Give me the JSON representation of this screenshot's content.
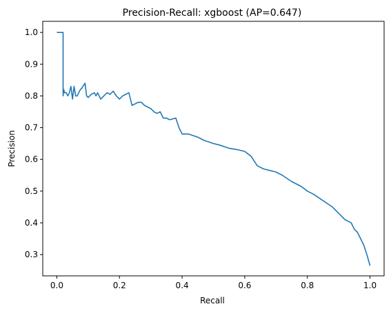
{
  "chart_data": {
    "type": "line",
    "title": "Precision-Recall: xgboost (AP=0.647)",
    "xlabel": "Recall",
    "ylabel": "Precision",
    "xlim": [
      -0.045,
      1.045
    ],
    "ylim": [
      0.233,
      1.035
    ],
    "xticks": [
      0.0,
      0.2,
      0.4,
      0.6,
      0.8,
      1.0
    ],
    "xtick_labels": [
      "0.0",
      "0.2",
      "0.4",
      "0.6",
      "0.8",
      "1.0"
    ],
    "yticks": [
      0.3,
      0.4,
      0.5,
      0.6,
      0.7,
      0.8,
      0.9,
      1.0
    ],
    "ytick_labels": [
      "0.3",
      "0.4",
      "0.5",
      "0.6",
      "0.7",
      "0.8",
      "0.9",
      "1.0"
    ],
    "grid": false,
    "line_color": "#1f77b4",
    "series": [
      {
        "x": [
          0.0,
          0.02,
          0.02,
          0.022,
          0.025,
          0.03,
          0.035,
          0.04,
          0.045,
          0.05,
          0.055,
          0.06,
          0.065,
          0.07,
          0.075,
          0.08,
          0.09,
          0.095,
          0.1,
          0.105,
          0.11,
          0.12,
          0.125,
          0.13,
          0.14,
          0.15,
          0.16,
          0.17,
          0.18,
          0.19,
          0.2,
          0.21,
          0.22,
          0.23,
          0.24,
          0.25,
          0.26,
          0.27,
          0.28,
          0.3,
          0.31,
          0.32,
          0.33,
          0.34,
          0.35,
          0.36,
          0.38,
          0.39,
          0.4,
          0.42,
          0.45,
          0.47,
          0.5,
          0.52,
          0.55,
          0.58,
          0.6,
          0.62,
          0.64,
          0.66,
          0.68,
          0.7,
          0.72,
          0.75,
          0.78,
          0.8,
          0.82,
          0.85,
          0.88,
          0.9,
          0.92,
          0.94,
          0.95,
          0.96,
          0.97,
          0.98,
          0.99,
          1.0
        ],
        "y": [
          1.0,
          1.0,
          0.8,
          0.82,
          0.81,
          0.81,
          0.8,
          0.81,
          0.83,
          0.79,
          0.83,
          0.8,
          0.8,
          0.81,
          0.82,
          0.825,
          0.84,
          0.8,
          0.795,
          0.8,
          0.805,
          0.81,
          0.8,
          0.81,
          0.79,
          0.8,
          0.81,
          0.805,
          0.815,
          0.8,
          0.79,
          0.8,
          0.805,
          0.81,
          0.77,
          0.775,
          0.78,
          0.78,
          0.77,
          0.76,
          0.75,
          0.745,
          0.75,
          0.73,
          0.73,
          0.725,
          0.73,
          0.7,
          0.68,
          0.68,
          0.67,
          0.66,
          0.65,
          0.645,
          0.635,
          0.63,
          0.625,
          0.61,
          0.58,
          0.57,
          0.565,
          0.56,
          0.55,
          0.53,
          0.515,
          0.5,
          0.49,
          0.47,
          0.45,
          0.43,
          0.41,
          0.4,
          0.38,
          0.37,
          0.35,
          0.33,
          0.3,
          0.265
        ]
      }
    ]
  }
}
